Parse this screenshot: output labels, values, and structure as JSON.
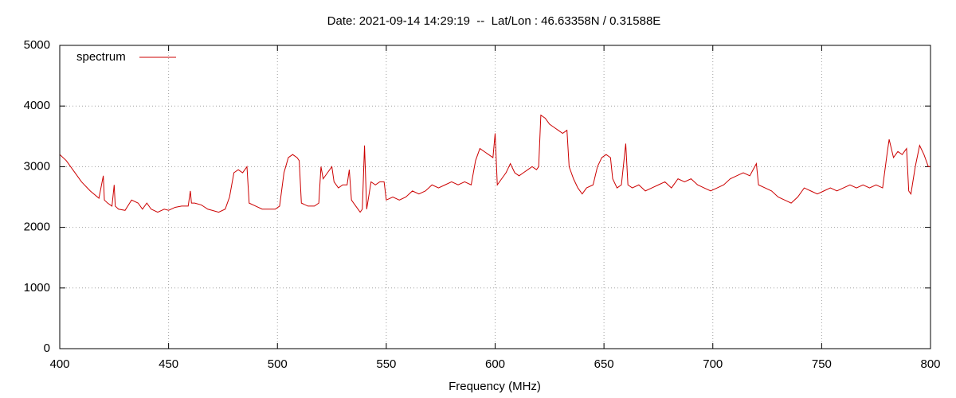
{
  "chart_data": {
    "type": "line",
    "title": "Date: 2021-09-14 14:29:19  --  Lat/Lon : 46.63358N / 0.31588E",
    "x_label": "Frequency (MHz)",
    "xlim": [
      400,
      800
    ],
    "ylim": [
      0,
      5000
    ],
    "xticks": [
      400,
      450,
      500,
      550,
      600,
      650,
      700,
      750,
      800
    ],
    "yticks": [
      0,
      1000,
      2000,
      3000,
      4000,
      5000
    ],
    "grid": true,
    "legend": "top-left",
    "x": [
      400,
      403,
      406,
      410,
      414,
      418,
      420,
      420.5,
      422,
      424,
      425,
      425.5,
      427,
      430,
      433,
      436,
      438,
      440,
      442,
      445,
      448,
      450,
      453,
      456,
      459,
      460,
      460.5,
      462,
      465,
      468,
      470,
      473,
      476,
      478,
      480,
      482,
      484,
      486,
      487,
      490,
      493,
      496,
      499,
      501,
      503,
      505,
      507,
      509,
      510,
      511,
      514,
      517,
      519,
      520,
      521,
      523,
      525,
      526,
      528,
      530,
      532,
      533,
      534,
      536,
      538,
      539,
      540,
      541,
      543,
      545,
      547,
      549,
      550,
      553,
      556,
      559,
      562,
      565,
      568,
      571,
      574,
      577,
      580,
      583,
      586,
      589,
      591,
      593,
      595,
      597,
      599,
      600,
      601,
      603,
      605,
      607,
      609,
      611,
      613,
      615,
      617,
      619,
      620,
      621,
      623,
      625,
      627,
      629,
      631,
      633,
      634,
      636,
      638,
      640,
      642,
      645,
      647,
      649,
      651,
      653,
      654,
      656,
      658,
      660,
      661,
      663,
      666,
      669,
      672,
      675,
      678,
      681,
      684,
      687,
      690,
      693,
      696,
      699,
      702,
      705,
      708,
      711,
      714,
      717,
      720,
      721,
      724,
      727,
      730,
      733,
      736,
      739,
      742,
      745,
      748,
      751,
      754,
      757,
      760,
      763,
      766,
      769,
      772,
      775,
      778,
      780,
      781,
      783,
      785,
      787,
      789,
      790,
      791,
      793,
      795,
      797,
      799,
      800
    ],
    "series": [
      {
        "name": "spectrum",
        "color": "#cc0000",
        "values": [
          3200,
          3100,
          2950,
          2750,
          2600,
          2480,
          2850,
          2450,
          2400,
          2350,
          2700,
          2350,
          2300,
          2280,
          2450,
          2400,
          2300,
          2400,
          2300,
          2250,
          2300,
          2280,
          2330,
          2350,
          2350,
          2600,
          2400,
          2400,
          2370,
          2300,
          2280,
          2250,
          2300,
          2500,
          2900,
          2950,
          2900,
          3000,
          2400,
          2350,
          2300,
          2300,
          2300,
          2350,
          2900,
          3150,
          3200,
          3150,
          3100,
          2400,
          2350,
          2350,
          2400,
          3000,
          2800,
          2900,
          3000,
          2750,
          2650,
          2700,
          2700,
          2950,
          2450,
          2350,
          2250,
          2300,
          3350,
          2300,
          2750,
          2700,
          2750,
          2750,
          2450,
          2500,
          2450,
          2500,
          2600,
          2550,
          2600,
          2700,
          2650,
          2700,
          2750,
          2700,
          2750,
          2700,
          3100,
          3300,
          3250,
          3200,
          3150,
          3550,
          2700,
          2800,
          2900,
          3050,
          2900,
          2850,
          2900,
          2950,
          3000,
          2950,
          3000,
          3850,
          3800,
          3700,
          3650,
          3600,
          3550,
          3600,
          3000,
          2800,
          2650,
          2550,
          2650,
          2700,
          3000,
          3150,
          3200,
          3150,
          2800,
          2650,
          2700,
          3380,
          2700,
          2650,
          2700,
          2600,
          2650,
          2700,
          2750,
          2650,
          2800,
          2750,
          2800,
          2700,
          2650,
          2600,
          2650,
          2700,
          2800,
          2850,
          2900,
          2850,
          3050,
          2700,
          2650,
          2600,
          2500,
          2450,
          2400,
          2500,
          2650,
          2600,
          2550,
          2600,
          2650,
          2600,
          2650,
          2700,
          2650,
          2700,
          2650,
          2700,
          2650,
          3200,
          3450,
          3150,
          3250,
          3200,
          3300,
          2600,
          2550,
          3000,
          3350,
          3200,
          3000,
          3000
        ]
      }
    ]
  }
}
